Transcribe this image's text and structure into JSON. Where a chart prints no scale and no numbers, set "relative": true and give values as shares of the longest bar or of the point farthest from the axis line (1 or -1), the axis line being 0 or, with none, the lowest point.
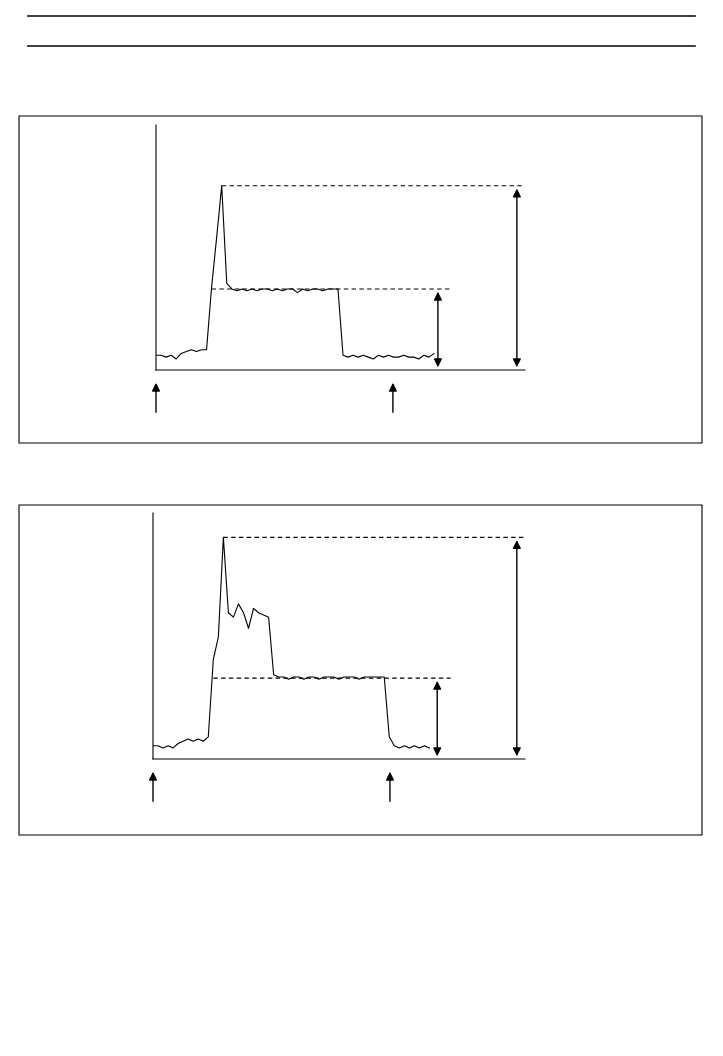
{
  "chart_data": [
    {
      "type": "line",
      "relative": true,
      "categories": [
        null,
        null,
        null,
        null,
        null,
        null,
        null,
        null,
        null,
        null,
        null,
        null,
        null,
        null,
        null,
        null,
        null,
        null,
        null,
        null,
        null,
        null,
        null,
        null,
        null,
        null,
        null,
        null,
        null,
        null,
        null,
        null,
        null,
        null,
        null,
        null,
        null,
        null,
        null,
        null,
        null,
        null,
        null,
        null,
        null,
        null,
        null,
        null,
        null,
        null,
        null,
        null,
        null,
        null,
        null,
        null,
        null,
        null,
        null,
        null,
        null,
        null,
        null,
        null,
        null,
        null,
        null,
        null,
        null,
        null,
        null,
        null,
        null,
        null
      ],
      "series": [
        {
          "color": "#000000",
          "values": [
            0.08,
            0.08,
            0.07,
            0.08,
            0.06,
            0.09,
            0.1,
            0.11,
            0.1,
            0.11,
            0.11,
            0.45,
            0.72,
            1.0,
            0.47,
            0.44,
            0.43,
            0.44,
            0.43,
            0.44,
            0.43,
            0.44,
            0.44,
            0.43,
            0.44,
            0.43,
            0.44,
            0.44,
            0.42,
            0.44,
            0.43,
            0.44,
            0.44,
            0.43,
            0.44,
            0.44,
            0.44,
            0.08,
            0.07,
            0.08,
            0.07,
            0.08,
            0.07,
            0.06,
            0.08,
            0.07,
            0.08,
            0.07,
            0.07,
            0.08,
            0.07,
            0.07,
            0.06,
            0.08,
            0.07,
            0.09,
            null,
            null,
            null,
            null,
            null,
            null,
            null,
            null,
            null,
            null,
            null,
            null,
            null,
            null,
            null,
            null,
            null,
            null
          ]
        }
      ],
      "ref_lines": [
        {
          "axis": "y",
          "value": 1.0,
          "color": "#000000",
          "line_style": "dashed"
        },
        {
          "axis": "y",
          "value": 0.44,
          "color": "#000000",
          "line_style": "dashed"
        }
      ]
    },
    {
      "type": "line",
      "relative": true,
      "categories": [
        null,
        null,
        null,
        null,
        null,
        null,
        null,
        null,
        null,
        null,
        null,
        null,
        null,
        null,
        null,
        null,
        null,
        null,
        null,
        null,
        null,
        null,
        null,
        null,
        null,
        null,
        null,
        null,
        null,
        null,
        null,
        null,
        null,
        null,
        null,
        null,
        null,
        null,
        null,
        null,
        null,
        null,
        null,
        null,
        null,
        null,
        null,
        null,
        null,
        null,
        null,
        null,
        null,
        null,
        null,
        null,
        null,
        null,
        null,
        null,
        null,
        null,
        null,
        null,
        null,
        null,
        null,
        null,
        null,
        null,
        null,
        null,
        null,
        null,
        null
      ],
      "series": [
        {
          "color": "#000000",
          "values": [
            0.06,
            0.06,
            0.05,
            0.06,
            0.05,
            0.07,
            0.08,
            0.09,
            0.08,
            0.09,
            0.08,
            0.1,
            0.45,
            0.55,
            1.0,
            0.66,
            0.64,
            0.7,
            0.66,
            0.59,
            0.68,
            0.66,
            0.65,
            0.64,
            0.38,
            0.37,
            0.37,
            0.36,
            0.37,
            0.37,
            0.36,
            0.37,
            0.37,
            0.36,
            0.37,
            0.37,
            0.37,
            0.36,
            0.37,
            0.37,
            0.37,
            0.36,
            0.37,
            0.37,
            0.37,
            0.37,
            0.37,
            0.1,
            0.06,
            0.05,
            0.06,
            0.05,
            0.06,
            0.05,
            0.06,
            0.05,
            null,
            null,
            null,
            null,
            null,
            null,
            null,
            null,
            null,
            null,
            null,
            null,
            null,
            null,
            null,
            null,
            null,
            null,
            null
          ]
        }
      ],
      "ref_lines": [
        {
          "axis": "y",
          "value": 1.0,
          "color": "#000000",
          "line_style": "dashed"
        },
        {
          "axis": "y",
          "value": 0.365,
          "color": "#000000",
          "line_style": "dashed"
        }
      ]
    }
  ]
}
